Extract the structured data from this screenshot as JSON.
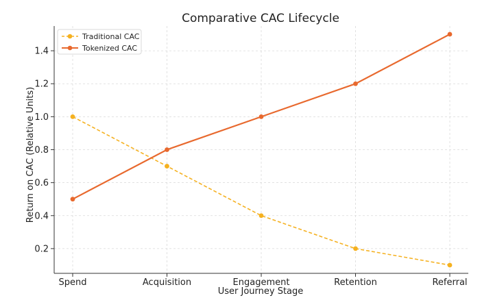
{
  "chart_data": {
    "type": "line",
    "title": "Comparative CAC Lifecycle",
    "xlabel": "User Journey Stage",
    "ylabel": "Return on CAC (Relative Units)",
    "categories": [
      "Spend",
      "Acquisition",
      "Engagement",
      "Retention",
      "Referral"
    ],
    "ylim": [
      0.05,
      1.55
    ],
    "yticks": [
      0.2,
      0.4,
      0.6,
      0.8,
      1.0,
      1.2,
      1.4
    ],
    "ytick_labels": [
      "0.2",
      "0.4",
      "0.6",
      "0.8",
      "1.0",
      "1.2",
      "1.4"
    ],
    "grid": true,
    "legend_position": "top-left",
    "series": [
      {
        "name": "Traditional CAC",
        "values": [
          1.0,
          0.7,
          0.4,
          0.2,
          0.1
        ],
        "color": "#f5b120",
        "dashed": true
      },
      {
        "name": "Tokenized CAC",
        "values": [
          0.5,
          0.8,
          1.0,
          1.2,
          1.5
        ],
        "color": "#e8692e",
        "dashed": false
      }
    ]
  }
}
